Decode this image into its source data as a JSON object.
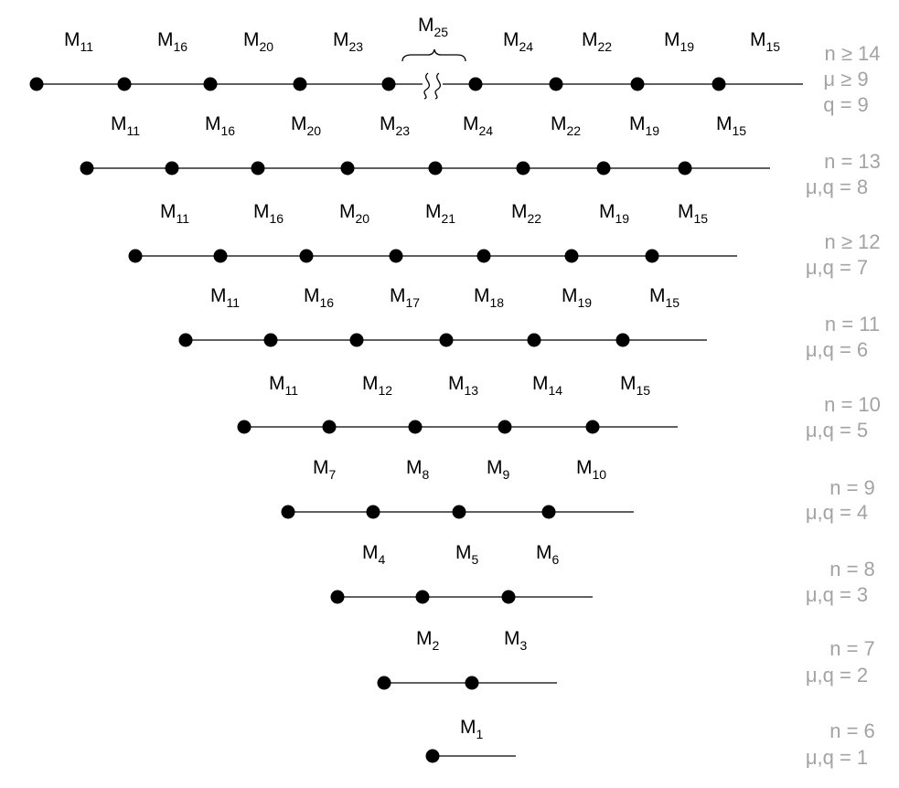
{
  "rows": [
    {
      "labels": [
        {
          "base": "M",
          "sub": "11"
        },
        {
          "base": "M",
          "sub": "16"
        },
        {
          "base": "M",
          "sub": "20"
        },
        {
          "base": "M",
          "sub": "23"
        },
        {
          "base": "M",
          "sub": "24"
        },
        {
          "base": "M",
          "sub": "22"
        },
        {
          "base": "M",
          "sub": "19"
        },
        {
          "base": "M",
          "sub": "15"
        }
      ],
      "break_label": {
        "base": "M",
        "sub": "25"
      },
      "conditions": [
        "n ≥ 14",
        "μ ≥ 9",
        "q = 9"
      ]
    },
    {
      "labels": [
        {
          "base": "M",
          "sub": "11"
        },
        {
          "base": "M",
          "sub": "16"
        },
        {
          "base": "M",
          "sub": "20"
        },
        {
          "base": "M",
          "sub": "23"
        },
        {
          "base": "M",
          "sub": "24"
        },
        {
          "base": "M",
          "sub": "22"
        },
        {
          "base": "M",
          "sub": "19"
        },
        {
          "base": "M",
          "sub": "15"
        }
      ],
      "conditions": [
        "n = 13",
        "μ,q = 8"
      ]
    },
    {
      "labels": [
        {
          "base": "M",
          "sub": "11"
        },
        {
          "base": "M",
          "sub": "16"
        },
        {
          "base": "M",
          "sub": "20"
        },
        {
          "base": "M",
          "sub": "21"
        },
        {
          "base": "M",
          "sub": "22"
        },
        {
          "base": "M",
          "sub": "19"
        },
        {
          "base": "M",
          "sub": "15"
        }
      ],
      "conditions": [
        "n ≥ 12",
        "μ,q = 7"
      ]
    },
    {
      "labels": [
        {
          "base": "M",
          "sub": "11"
        },
        {
          "base": "M",
          "sub": "16"
        },
        {
          "base": "M",
          "sub": "17"
        },
        {
          "base": "M",
          "sub": "18"
        },
        {
          "base": "M",
          "sub": "19"
        },
        {
          "base": "M",
          "sub": "15"
        }
      ],
      "conditions": [
        "n = 11",
        "μ,q = 6"
      ]
    },
    {
      "labels": [
        {
          "base": "M",
          "sub": "11"
        },
        {
          "base": "M",
          "sub": "12"
        },
        {
          "base": "M",
          "sub": "13"
        },
        {
          "base": "M",
          "sub": "14"
        },
        {
          "base": "M",
          "sub": "15"
        }
      ],
      "conditions": [
        "n = 10",
        "μ,q = 5"
      ]
    },
    {
      "labels": [
        {
          "base": "M",
          "sub": "7"
        },
        {
          "base": "M",
          "sub": "8"
        },
        {
          "base": "M",
          "sub": "9"
        },
        {
          "base": "M",
          "sub": "10"
        }
      ],
      "conditions": [
        "n = 9",
        "μ,q = 4"
      ]
    },
    {
      "labels": [
        {
          "base": "M",
          "sub": "4"
        },
        {
          "base": "M",
          "sub": "5"
        },
        {
          "base": "M",
          "sub": "6"
        }
      ],
      "conditions": [
        "n = 8",
        "μ,q = 3"
      ]
    },
    {
      "labels": [
        {
          "base": "M",
          "sub": "2"
        },
        {
          "base": "M",
          "sub": "3"
        }
      ],
      "conditions": [
        "n = 7",
        "μ,q = 2"
      ]
    },
    {
      "labels": [
        {
          "base": "M",
          "sub": "1"
        }
      ],
      "conditions": [
        "n = 6",
        "μ,q = 1"
      ]
    }
  ]
}
